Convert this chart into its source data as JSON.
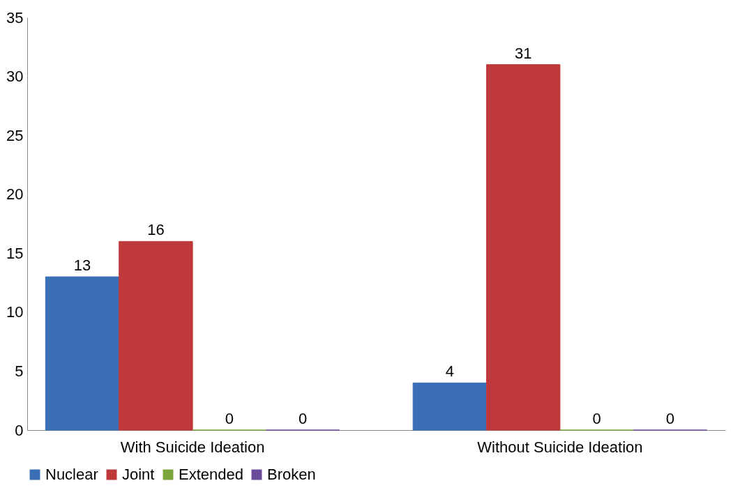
{
  "chart_data": {
    "type": "bar",
    "categories": [
      "With Suicide Ideation",
      "Without Suicide Ideation"
    ],
    "series": [
      {
        "name": "Nuclear",
        "color": "#3a6fb5",
        "values": [
          13,
          4
        ]
      },
      {
        "name": "Joint",
        "color": "#c0393a",
        "values": [
          16,
          31
        ]
      },
      {
        "name": "Extended",
        "color": "#7ba63b",
        "values": [
          0,
          0
        ]
      },
      {
        "name": "Broken",
        "color": "#6b4c9a",
        "values": [
          0,
          0
        ]
      }
    ],
    "ylim": [
      0,
      35
    ],
    "yticks": [
      0,
      5,
      10,
      15,
      20,
      25,
      30,
      35
    ],
    "grid": false,
    "legend": "bottom",
    "data_labels": true
  }
}
